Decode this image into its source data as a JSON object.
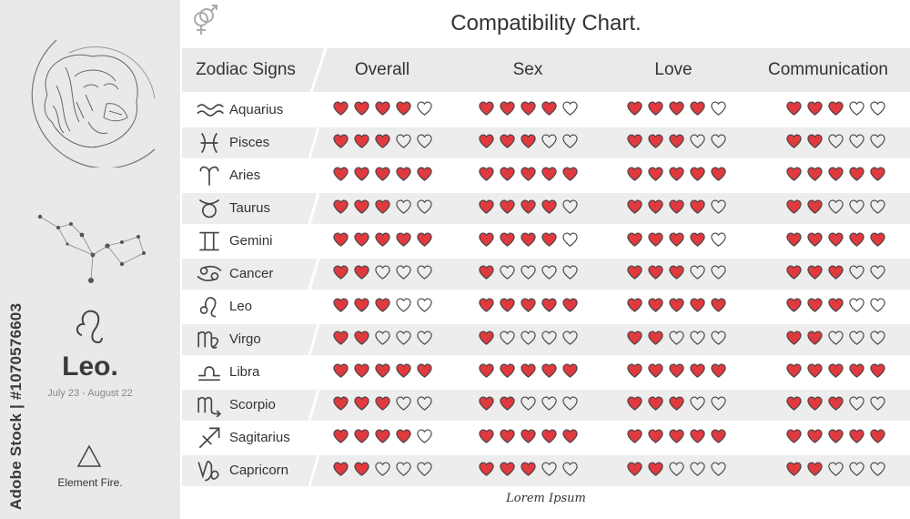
{
  "watermark": {
    "vertical_text": "Adobe Stock | #1070576603"
  },
  "sidebar": {
    "sign_title": "Leo.",
    "dates": "July 23 - August 22",
    "element": "Element Fire."
  },
  "header": {
    "title": "Compatibility Chart.",
    "columns": [
      "Zodiac Signs",
      "Overall",
      "Sex",
      "Love",
      "Communication"
    ]
  },
  "colors": {
    "heart_fill": "#e03a3f",
    "heart_outline": "#444444",
    "row_shade": "#ededed",
    "sidebar_bg": "#e9e9e9"
  },
  "rows": [
    {
      "sign": "Aquarius",
      "icon": "aquarius-icon",
      "overall": 4,
      "sex": 4,
      "love": 4,
      "communication": 3
    },
    {
      "sign": "Pisces",
      "icon": "pisces-icon",
      "overall": 3,
      "sex": 3,
      "love": 3,
      "communication": 2
    },
    {
      "sign": "Aries",
      "icon": "aries-icon",
      "overall": 5,
      "sex": 5,
      "love": 5,
      "communication": 5
    },
    {
      "sign": "Taurus",
      "icon": "taurus-icon",
      "overall": 3,
      "sex": 4,
      "love": 4,
      "communication": 2
    },
    {
      "sign": "Gemini",
      "icon": "gemini-icon",
      "overall": 5,
      "sex": 4,
      "love": 4,
      "communication": 5
    },
    {
      "sign": "Cancer",
      "icon": "cancer-icon",
      "overall": 2,
      "sex": 1,
      "love": 3,
      "communication": 3
    },
    {
      "sign": "Leo",
      "icon": "leo-icon",
      "overall": 3,
      "sex": 5,
      "love": 5,
      "communication": 3
    },
    {
      "sign": "Virgo",
      "icon": "virgo-icon",
      "overall": 2,
      "sex": 1,
      "love": 2,
      "communication": 2
    },
    {
      "sign": "Libra",
      "icon": "libra-icon",
      "overall": 5,
      "sex": 5,
      "love": 5,
      "communication": 5
    },
    {
      "sign": "Scorpio",
      "icon": "scorpio-icon",
      "overall": 3,
      "sex": 2,
      "love": 3,
      "communication": 3
    },
    {
      "sign": "Sagitarius",
      "icon": "sagittarius-icon",
      "overall": 4,
      "sex": 5,
      "love": 5,
      "communication": 5
    },
    {
      "sign": "Capricorn",
      "icon": "capricorn-icon",
      "overall": 2,
      "sex": 3,
      "love": 2,
      "communication": 2
    }
  ],
  "footer": {
    "signature": "Lorem Ipsum"
  }
}
